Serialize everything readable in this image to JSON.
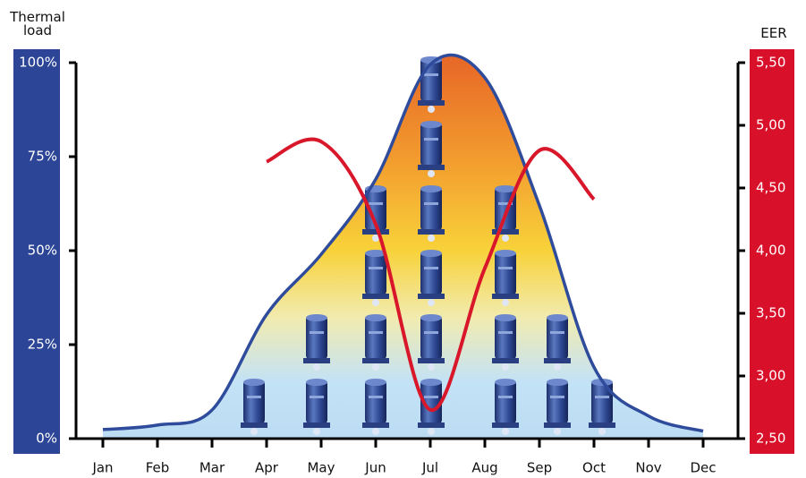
{
  "chart_data": {
    "type": "line",
    "y_label": "Thermal load",
    "y2_label": "EER",
    "categories": [
      "Jan",
      "Feb",
      "Mar",
      "Apr",
      "May",
      "Jun",
      "Jul",
      "Aug",
      "Sep",
      "Oct",
      "Nov",
      "Dec"
    ],
    "series": [
      {
        "color": "#2e4b9c",
        "area": true,
        "values": [
          2.4,
          3.6,
          7.6,
          33,
          49,
          69,
          99.5,
          96,
          62,
          19,
          6,
          2
        ]
      },
      {
        "color": "#d9172b",
        "axis": "y2",
        "values": [
          null,
          null,
          null,
          4.71,
          4.87,
          4.21,
          2.73,
          3.86,
          4.8,
          4.41,
          null,
          null
        ]
      }
    ],
    "ylim": [
      0,
      100
    ],
    "yticks": [
      {
        "value": 0,
        "label": "0%"
      },
      {
        "value": 25,
        "label": "25%"
      },
      {
        "value": 50,
        "label": "50%"
      },
      {
        "value": 75,
        "label": "75%"
      },
      {
        "value": 100,
        "label": "100%"
      }
    ],
    "y2lim": [
      2.5,
      5.5
    ],
    "y2ticks": [
      {
        "value": 2.5,
        "label": "2,50"
      },
      {
        "value": 3,
        "label": "3,00"
      },
      {
        "value": 3.5,
        "label": "3,50"
      },
      {
        "value": 4,
        "label": "4,00"
      },
      {
        "value": 4.5,
        "label": "4,50"
      },
      {
        "value": 5,
        "label": "5,00"
      },
      {
        "value": 5.5,
        "label": "5,50"
      }
    ]
  }
}
